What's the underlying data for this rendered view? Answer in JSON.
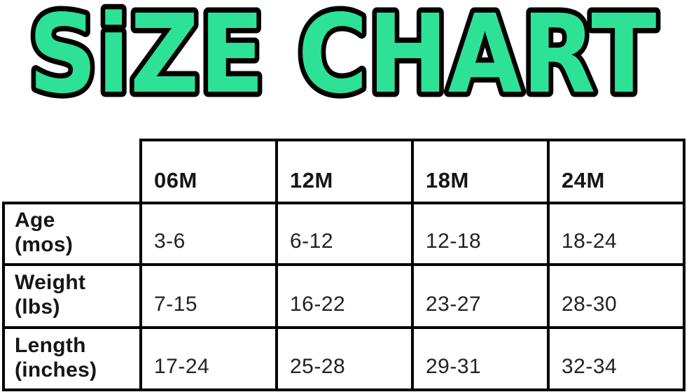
{
  "chart_data": {
    "type": "table",
    "title": "SiZE CHART",
    "columns": [
      "06M",
      "12M",
      "18M",
      "24M"
    ],
    "rows": [
      {
        "label": "Age",
        "unit": "(mos)",
        "values": [
          "3-6",
          "6-12",
          "12-18",
          "18-24"
        ]
      },
      {
        "label": "Weight",
        "unit": "(lbs)",
        "values": [
          "7-15",
          "16-22",
          "23-27",
          "28-30"
        ]
      },
      {
        "label": "Length",
        "unit": "(inches)",
        "values": [
          "17-24",
          "25-28",
          "29-31",
          "32-34"
        ]
      }
    ],
    "layout_hints": {
      "corner_cell": "empty, no borders",
      "grid": "black 4px rules, white cells"
    }
  },
  "colors": {
    "title_fill": "#2DE296",
    "title_outline": "#000000",
    "table_line": "#000000",
    "background": "#FFFFFF",
    "text": "#1C1C1C"
  }
}
